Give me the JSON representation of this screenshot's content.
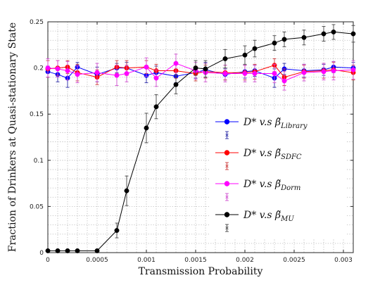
{
  "chart_data": {
    "type": "line",
    "xlabel": "Transmission Probability",
    "ylabel": "Fraction of Drinkers at Quasi-stationary State",
    "xlim": [
      0,
      0.0031
    ],
    "ylim": [
      0,
      0.25
    ],
    "xticks": [
      0,
      0.0005,
      0.001,
      0.0015,
      0.002,
      0.0025,
      0.003
    ],
    "xtick_labels": [
      "0",
      "0.0005",
      "0.001",
      "0.0015",
      "0.002",
      "0.0025",
      "0.003"
    ],
    "yticks": [
      0,
      0.05,
      0.1,
      0.15,
      0.2,
      0.25
    ],
    "ytick_labels": [
      "0",
      "0.05",
      "0.1",
      "0.15",
      "0.2",
      "0.25"
    ],
    "grid": true,
    "legend_position": "right",
    "x": [
      0.0,
      0.0001,
      0.0002,
      0.0003,
      0.0005,
      0.0007,
      0.0008,
      0.001,
      0.0011,
      0.0013,
      0.0015,
      0.0016,
      0.0018,
      0.002,
      0.0021,
      0.0023,
      0.0024,
      0.0026,
      0.0028,
      0.0029,
      0.0031
    ],
    "series": [
      {
        "name": "D* v.s β̃_Library",
        "legend_main": "D* v.s β̃",
        "legend_sub": "Library",
        "color": "#0000ff",
        "error_color": "#2a2aa6",
        "values": [
          0.196,
          0.193,
          0.189,
          0.201,
          0.193,
          0.2,
          0.2,
          0.192,
          0.195,
          0.191,
          0.195,
          0.198,
          0.193,
          0.196,
          0.197,
          0.189,
          0.199,
          0.197,
          0.198,
          0.201,
          0.2
        ],
        "errors": [
          0.006,
          0.008,
          0.01,
          0.005,
          0.008,
          0.005,
          0.006,
          0.008,
          0.007,
          0.007,
          0.006,
          0.008,
          0.006,
          0.007,
          0.006,
          0.01,
          0.006,
          0.007,
          0.006,
          0.006,
          0.006
        ]
      },
      {
        "name": "D* v.s β̃_SDFC",
        "legend_main": "D* v.s β̃",
        "legend_sub": "SDFC",
        "color": "#ff0000",
        "error_color": "#cc3b3b",
        "values": [
          0.199,
          0.2,
          0.201,
          0.195,
          0.19,
          0.201,
          0.2,
          0.201,
          0.197,
          0.197,
          0.194,
          0.196,
          0.195,
          0.195,
          0.196,
          0.203,
          0.19,
          0.196,
          0.197,
          0.198,
          0.195
        ],
        "errors": [
          0.009,
          0.008,
          0.007,
          0.009,
          0.008,
          0.007,
          0.008,
          0.007,
          0.007,
          0.008,
          0.008,
          0.007,
          0.008,
          0.008,
          0.008,
          0.007,
          0.009,
          0.007,
          0.008,
          0.008,
          0.008
        ]
      },
      {
        "name": "D* v.s β̃_Dorm",
        "legend_main": "D* v.s β̃",
        "legend_sub": "Dorm",
        "color": "#ff00ff",
        "error_color": "#d04fd0",
        "values": [
          0.2,
          0.199,
          0.197,
          0.193,
          0.195,
          0.192,
          0.194,
          0.201,
          0.189,
          0.205,
          0.197,
          0.195,
          0.194,
          0.194,
          0.194,
          0.194,
          0.186,
          0.195,
          0.196,
          0.197,
          0.198
        ],
        "errors": [
          0.01,
          0.009,
          0.01,
          0.009,
          0.01,
          0.011,
          0.009,
          0.01,
          0.009,
          0.01,
          0.009,
          0.01,
          0.009,
          0.009,
          0.009,
          0.01,
          0.01,
          0.009,
          0.009,
          0.01,
          0.01
        ]
      },
      {
        "name": "D* v.s β̃_MU",
        "legend_main": "D* v.s β̃",
        "legend_sub": "MU",
        "color": "#000000",
        "error_color": "#444444",
        "values": [
          0.002,
          0.002,
          0.002,
          0.002,
          0.002,
          0.024,
          0.067,
          0.135,
          0.158,
          0.182,
          0.2,
          0.199,
          0.21,
          0.214,
          0.221,
          0.227,
          0.231,
          0.233,
          0.237,
          0.239,
          0.237
        ],
        "errors": [
          0.0,
          0.0,
          0.0,
          0.0,
          0.0,
          0.008,
          0.016,
          0.016,
          0.013,
          0.01,
          0.008,
          0.009,
          0.01,
          0.01,
          0.009,
          0.008,
          0.008,
          0.008,
          0.008,
          0.008,
          0.009
        ]
      }
    ],
    "legend_entries": [
      {
        "series_index": 0,
        "main": "D* v.s β̃",
        "sub": "Library"
      },
      {
        "series_index": 1,
        "main": "D* v.s β̃",
        "sub": "SDFC"
      },
      {
        "series_index": 2,
        "main": "D* v.s β̃",
        "sub": "Dorm"
      },
      {
        "series_index": 3,
        "main": "D* v.s β̃",
        "sub": "MU"
      }
    ]
  }
}
